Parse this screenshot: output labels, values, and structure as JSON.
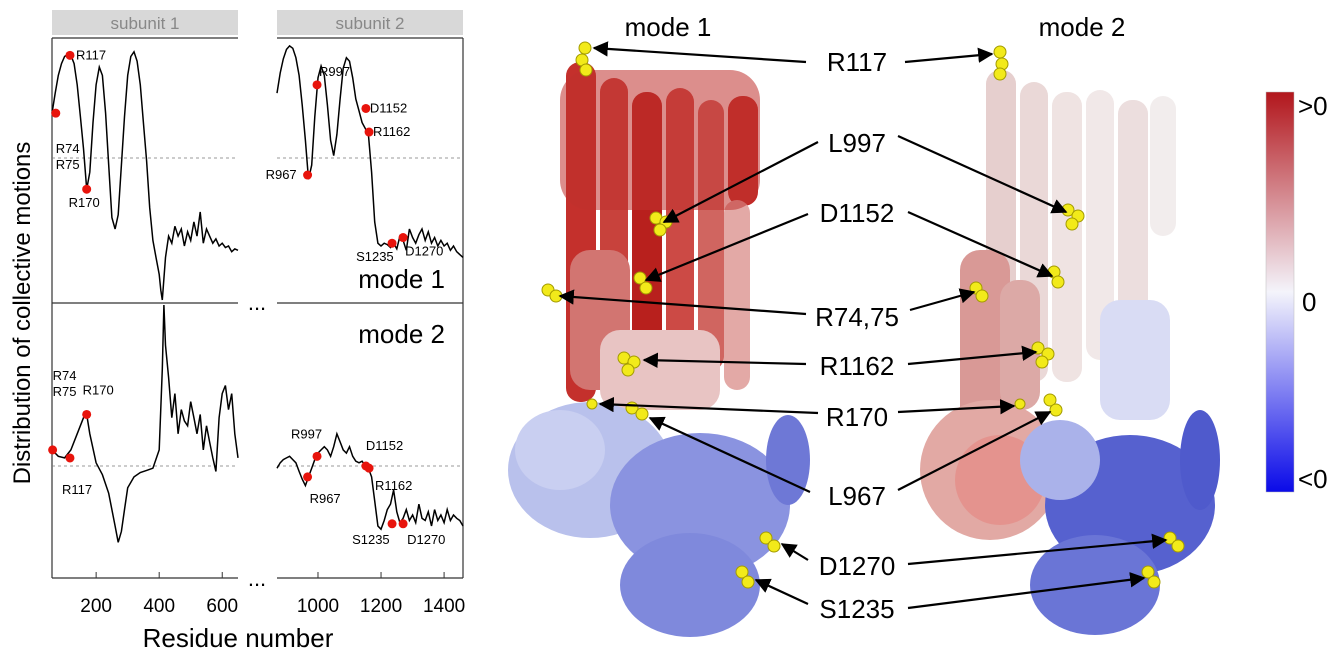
{
  "chart_data": [
    {
      "type": "line",
      "panel": "mode 1",
      "title": "mode 1",
      "xlabel": "Residue number",
      "ylabel": "Distribution of collective motions",
      "subunits": [
        "subunit 1",
        "subunit 2"
      ],
      "axis_break": "...",
      "xticks": [
        200,
        400,
        600,
        1000,
        1200,
        1400
      ],
      "xlim_subunit1": [
        60,
        650
      ],
      "xlim_subunit2": [
        870,
        1460
      ],
      "ylim": [
        -1.0,
        1.0
      ],
      "baseline": 0,
      "series": [
        {
          "segment": "subunit 1",
          "x": [
            60,
            70,
            80,
            90,
            100,
            110,
            120,
            130,
            140,
            150,
            160,
            170,
            180,
            190,
            200,
            210,
            220,
            230,
            240,
            250,
            260,
            270,
            280,
            290,
            300,
            310,
            320,
            330,
            340,
            350,
            360,
            370,
            380,
            390,
            400,
            405,
            410,
            415,
            420,
            430,
            440,
            450,
            460,
            470,
            480,
            490,
            500,
            510,
            520,
            530,
            540,
            550,
            560,
            570,
            580,
            590,
            600,
            610,
            620,
            630,
            640,
            650
          ],
          "y": [
            0.38,
            0.55,
            0.7,
            0.8,
            0.86,
            0.88,
            0.87,
            0.8,
            0.62,
            0.35,
            0.08,
            -0.22,
            -0.1,
            0.3,
            0.62,
            0.77,
            0.7,
            0.38,
            -0.05,
            -0.42,
            -0.5,
            -0.4,
            -0.05,
            0.35,
            0.7,
            0.86,
            0.9,
            0.82,
            0.62,
            0.3,
            -0.02,
            -0.35,
            -0.58,
            -0.7,
            -0.82,
            -0.93,
            -1.0,
            -0.85,
            -0.7,
            -0.55,
            -0.6,
            -0.48,
            -0.55,
            -0.5,
            -0.62,
            -0.52,
            -0.58,
            -0.45,
            -0.55,
            -0.38,
            -0.6,
            -0.5,
            -0.55,
            -0.6,
            -0.57,
            -0.62,
            -0.6,
            -0.63,
            -0.62,
            -0.66,
            -0.64,
            -0.65
          ]
        },
        {
          "segment": "subunit 2",
          "x": [
            870,
            880,
            890,
            900,
            910,
            920,
            930,
            940,
            950,
            960,
            970,
            980,
            990,
            1000,
            1010,
            1020,
            1030,
            1040,
            1050,
            1060,
            1070,
            1080,
            1090,
            1100,
            1110,
            1120,
            1130,
            1140,
            1150,
            1160,
            1170,
            1180,
            1190,
            1200,
            1210,
            1220,
            1230,
            1240,
            1250,
            1260,
            1270,
            1280,
            1290,
            1300,
            1310,
            1320,
            1330,
            1340,
            1350,
            1360,
            1370,
            1380,
            1390,
            1400,
            1410,
            1420,
            1430,
            1440,
            1450,
            1460
          ],
          "y": [
            0.55,
            0.72,
            0.84,
            0.92,
            0.95,
            0.93,
            0.85,
            0.7,
            0.45,
            0.15,
            -0.15,
            -0.05,
            0.35,
            0.68,
            0.78,
            0.7,
            0.45,
            0.15,
            0.02,
            0.2,
            0.5,
            0.76,
            0.85,
            0.82,
            0.68,
            0.5,
            0.4,
            0.3,
            0.25,
            0.2,
            -0.1,
            -0.45,
            -0.6,
            -0.62,
            -0.6,
            -0.61,
            -0.63,
            -0.6,
            -0.64,
            -0.55,
            -0.58,
            -0.65,
            -0.5,
            -0.56,
            -0.6,
            -0.54,
            -0.5,
            -0.58,
            -0.52,
            -0.6,
            -0.56,
            -0.62,
            -0.58,
            -0.62,
            -0.6,
            -0.65,
            -0.62,
            -0.66,
            -0.68,
            -0.7
          ]
        }
      ],
      "markers": [
        {
          "label": "R74\nR75",
          "x": 72,
          "y": 0.38
        },
        {
          "label": "R117",
          "x": 117,
          "y": 0.87
        },
        {
          "label": "R170",
          "x": 170,
          "y": -0.22
        },
        {
          "label": "R967",
          "x": 967,
          "y": -0.12
        },
        {
          "label": "R997",
          "x": 997,
          "y": 0.62
        },
        {
          "label": "D1152",
          "x": 1152,
          "y": 0.42
        },
        {
          "label": "R1162",
          "x": 1162,
          "y": 0.22
        },
        {
          "label": "S1235",
          "x": 1235,
          "y": -0.6
        },
        {
          "label": "D1270",
          "x": 1270,
          "y": -0.56
        }
      ]
    },
    {
      "type": "line",
      "panel": "mode 2",
      "title": "mode 2",
      "xlabel": "Residue number",
      "ylabel": "Distribution of collective motions",
      "subunits": [
        "subunit 1",
        "subunit 2"
      ],
      "axis_break": "...",
      "xticks": [
        200,
        400,
        600,
        1000,
        1200,
        1400
      ],
      "xlim_subunit1": [
        60,
        650
      ],
      "xlim_subunit2": [
        870,
        1460
      ],
      "ylim": [
        -1.0,
        1.0
      ],
      "baseline": 0,
      "series": [
        {
          "segment": "subunit 1",
          "x": [
            60,
            80,
            100,
            120,
            140,
            160,
            170,
            180,
            200,
            220,
            240,
            260,
            270,
            280,
            290,
            300,
            320,
            340,
            360,
            380,
            400,
            410,
            415,
            420,
            430,
            440,
            450,
            460,
            470,
            480,
            490,
            500,
            510,
            520,
            530,
            540,
            550,
            560,
            570,
            580,
            590,
            600,
            610,
            620,
            630,
            640,
            650
          ],
          "y": [
            0.1,
            0.06,
            0.05,
            0.1,
            0.2,
            0.3,
            0.32,
            0.2,
            0.02,
            -0.08,
            -0.25,
            -0.55,
            -0.7,
            -0.6,
            -0.4,
            -0.2,
            -0.1,
            -0.06,
            -0.04,
            -0.02,
            0.1,
            0.6,
            1.0,
            0.75,
            0.55,
            0.3,
            0.45,
            0.2,
            0.35,
            0.28,
            0.25,
            0.4,
            0.3,
            0.2,
            0.32,
            0.1,
            0.25,
            0.15,
            0.05,
            -0.05,
            0.3,
            0.45,
            0.5,
            0.35,
            0.45,
            0.2,
            0.05
          ]
        },
        {
          "segment": "subunit 2",
          "x": [
            870,
            880,
            890,
            900,
            910,
            920,
            930,
            940,
            950,
            960,
            970,
            980,
            990,
            1000,
            1010,
            1020,
            1030,
            1040,
            1050,
            1060,
            1070,
            1080,
            1090,
            1100,
            1110,
            1120,
            1130,
            1140,
            1150,
            1160,
            1170,
            1180,
            1190,
            1200,
            1210,
            1220,
            1230,
            1240,
            1250,
            1260,
            1270,
            1280,
            1290,
            1300,
            1310,
            1320,
            1330,
            1340,
            1350,
            1360,
            1370,
            1380,
            1390,
            1400,
            1410,
            1420,
            1430,
            1440,
            1450,
            1460
          ],
          "y": [
            -0.02,
            0.02,
            0.04,
            0.05,
            0.06,
            0.04,
            0.02,
            -0.05,
            -0.12,
            -0.18,
            -0.1,
            -0.02,
            0.04,
            0.08,
            0.1,
            0.12,
            0.1,
            0.06,
            0.12,
            0.2,
            0.15,
            0.1,
            0.08,
            0.12,
            0.06,
            0.03,
            0.02,
            0.03,
            0.0,
            -0.02,
            -0.1,
            -0.32,
            -0.55,
            -0.58,
            -0.5,
            -0.4,
            -0.35,
            -0.22,
            -0.42,
            -0.52,
            -0.48,
            -0.4,
            -0.5,
            -0.45,
            -0.52,
            -0.35,
            -0.48,
            -0.5,
            -0.42,
            -0.55,
            -0.4,
            -0.5,
            -0.45,
            -0.52,
            -0.4,
            -0.5,
            -0.45,
            -0.48,
            -0.5,
            -0.55
          ]
        }
      ],
      "markers": [
        {
          "label": "R74\nR75",
          "x": 62,
          "y": 0.1
        },
        {
          "label": "R117",
          "x": 117,
          "y": 0.05
        },
        {
          "label": "R170",
          "x": 170,
          "y": 0.32
        },
        {
          "label": "R967",
          "x": 967,
          "y": -0.1
        },
        {
          "label": "R997",
          "x": 997,
          "y": 0.06
        },
        {
          "label": "D1152",
          "x": 1152,
          "y": 0.0
        },
        {
          "label": "R1162",
          "x": 1162,
          "y": -0.02
        },
        {
          "label": "S1235",
          "x": 1235,
          "y": -0.53
        },
        {
          "label": "D1270",
          "x": 1270,
          "y": -0.53
        }
      ]
    }
  ],
  "structure_panel": {
    "mode_titles": [
      "mode 1",
      "mode 2"
    ],
    "residue_labels": [
      "R117",
      "L997",
      "D1152",
      "R74,75",
      "R1162",
      "R170",
      "L967",
      "D1270",
      "S1235"
    ],
    "highlight_color": "#f2ea1a",
    "colorbar": {
      "top_label": ">0",
      "mid_label": "0",
      "bottom_label": "<0",
      "colors": [
        "#b2161c",
        "#f4f4fb",
        "#0a0ae8"
      ]
    }
  }
}
